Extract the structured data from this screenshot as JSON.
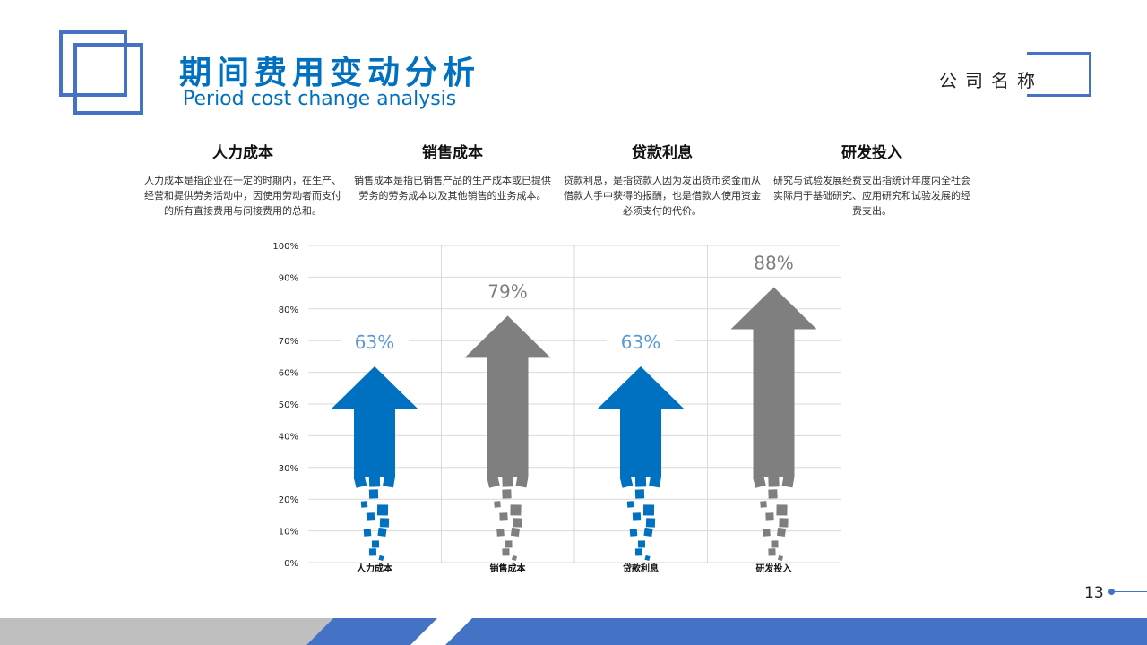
{
  "header": {
    "title": "期间费用变动分析",
    "subtitle": "Period cost change analysis",
    "company": "公司名称"
  },
  "categories": [
    {
      "title": "人力成本",
      "desc": "人力成本是指企业在一定的时期内，在生产、经营和提供劳务活动中，因使用劳动者而支付的所有直接费用与间接费用的总和。"
    },
    {
      "title": "销售成本",
      "desc": "销售成本是指已销售产品的生产成本或已提供劳务的劳务成本以及其他销售的业务成本。"
    },
    {
      "title": "贷款利息",
      "desc": "贷款利息，是指贷款人因为发出货币资金而从借款人手中获得的报酬，也是借款人使用资金必须支付的代价。"
    },
    {
      "title": "研发投入",
      "desc": "研究与试验发展经费支出指统计年度内全社会实际用于基础研究、应用研究和试验发展的经费支出。"
    }
  ],
  "colors": {
    "blue": "#0070c0",
    "gray": "#7f7f7f",
    "labelBlue": "#5b9bd5",
    "labelGray": "#7f7f7f",
    "grid": "#d9d9d9",
    "accent": "#4472c4"
  },
  "chart_data": {
    "type": "bar",
    "categories": [
      "人力成本",
      "销售成本",
      "贷款利息",
      "研发投入"
    ],
    "values": [
      63,
      79,
      63,
      88
    ],
    "value_labels": [
      "63%",
      "79%",
      "63%",
      "88%"
    ],
    "bar_colors": [
      "blue",
      "gray",
      "blue",
      "gray"
    ],
    "yticks": [
      "0%",
      "10%",
      "20%",
      "30%",
      "40%",
      "50%",
      "60%",
      "70%",
      "80%",
      "90%",
      "100%"
    ],
    "ylim": [
      0,
      100
    ],
    "grid": true,
    "legend": "none"
  },
  "page": {
    "number": "13"
  }
}
